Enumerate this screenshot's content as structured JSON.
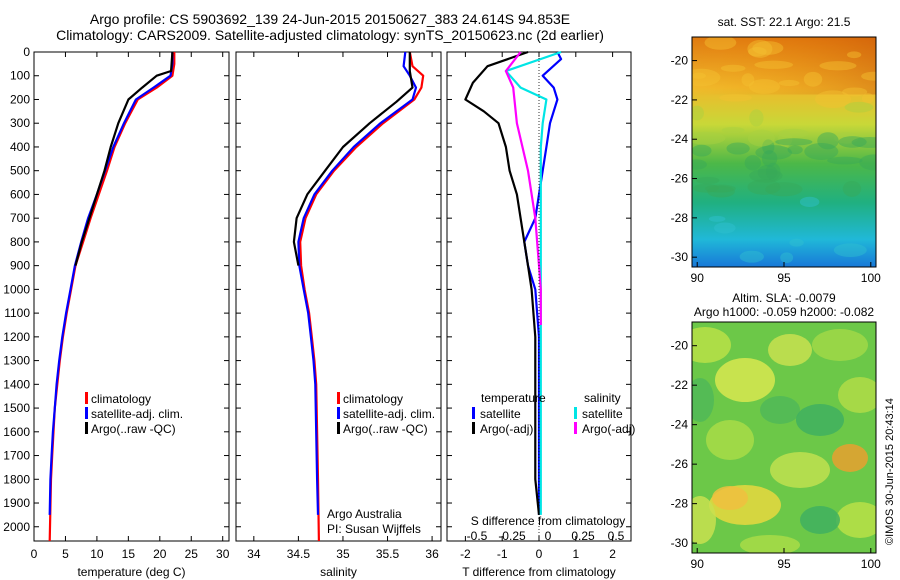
{
  "header": {
    "line1": "Argo profile: CS 5903692_139 24-Jun-2015 20150627_383 24.614S 94.853E",
    "line2": "Climatology: CARS2009. Satellite-adjusted climatology: synTS_20150623.nc (2d earlier)"
  },
  "credit": "©IMOS 30-Jun-2015 20:43:14",
  "colors": {
    "climatology": "#ff0000",
    "satellite": "#0000ff",
    "argo": "#000000",
    "sal_satellite": "#00e5e5",
    "sal_argo": "#ff00ff"
  },
  "chart_data": [
    {
      "id": "temperature",
      "type": "line",
      "xlabel": "temperature (deg C)",
      "ylabel": "",
      "xlim": [
        0,
        31
      ],
      "ylim": [
        0,
        2060
      ],
      "xticks": [
        0,
        5,
        10,
        15,
        20,
        25,
        30
      ],
      "yticks": [
        0,
        100,
        200,
        300,
        400,
        500,
        600,
        700,
        800,
        900,
        1000,
        1100,
        1200,
        1300,
        1400,
        1500,
        1600,
        1700,
        1800,
        1900,
        2000
      ],
      "legend": [
        "climatology",
        "satellite-adj. clim.",
        "Argo(..raw -QC)"
      ],
      "series": [
        {
          "name": "climatology",
          "x": [
            22.3,
            22.3,
            22.0,
            19.5,
            16.5,
            14.5,
            12.8,
            11.6,
            10.3,
            9.0,
            7.8,
            6.6,
            5.9,
            5.2,
            4.6,
            4.1,
            3.7,
            3.3,
            3.1,
            2.9,
            2.7,
            2.5
          ],
          "y": [
            0,
            50,
            100,
            150,
            200,
            300,
            400,
            500,
            600,
            700,
            800,
            900,
            1000,
            1100,
            1200,
            1300,
            1400,
            1500,
            1600,
            1700,
            1800,
            2060
          ]
        },
        {
          "name": "satellite-adj. clim.",
          "x": [
            22.0,
            22.0,
            21.7,
            19.0,
            16.2,
            14.3,
            12.6,
            11.3,
            10.0,
            8.6,
            7.5,
            6.5,
            5.8,
            5.1,
            4.5,
            4.0,
            3.6,
            3.3,
            3.0,
            2.8,
            2.6,
            2.5
          ],
          "y": [
            0,
            50,
            100,
            150,
            200,
            300,
            400,
            500,
            600,
            700,
            800,
            900,
            1000,
            1100,
            1200,
            1300,
            1400,
            1500,
            1600,
            1700,
            1800,
            1950
          ]
        },
        {
          "name": "Argo(..raw -QC)",
          "x": [
            22.0,
            21.8,
            19.5,
            17.2,
            15.0,
            13.4,
            12.2,
            11.2,
            10.0,
            8.8,
            7.6,
            6.6
          ],
          "y": [
            0,
            80,
            100,
            150,
            200,
            300,
            400,
            500,
            600,
            700,
            800,
            900
          ]
        }
      ]
    },
    {
      "id": "salinity",
      "type": "line",
      "xlabel": "salinity",
      "ylabel": "",
      "xlim": [
        33.8,
        36.1
      ],
      "ylim": [
        0,
        2060
      ],
      "xticks": [
        34,
        34.5,
        35,
        35.5,
        36
      ],
      "xticklabels": [
        "34",
        "34.5",
        "35",
        "35.5",
        "36"
      ],
      "legend": [
        "climatology",
        "satellite-adj. clim.",
        "Argo(..raw -QC)"
      ],
      "annotation": [
        "Argo Australia",
        "PI: Susan Wijffels"
      ],
      "series": [
        {
          "name": "climatology",
          "x": [
            35.75,
            35.78,
            35.9,
            35.88,
            35.8,
            35.45,
            35.15,
            34.9,
            34.7,
            34.58,
            34.52,
            34.53,
            34.57,
            34.62,
            34.65,
            34.68,
            34.7,
            34.71,
            34.72,
            34.73
          ],
          "y": [
            0,
            60,
            100,
            150,
            200,
            300,
            400,
            500,
            600,
            700,
            800,
            900,
            1000,
            1100,
            1200,
            1300,
            1400,
            1600,
            1800,
            2060
          ]
        },
        {
          "name": "satellite-adj. clim.",
          "x": [
            35.7,
            35.68,
            35.75,
            35.82,
            35.78,
            35.42,
            35.12,
            34.88,
            34.68,
            34.56,
            34.5,
            34.51,
            34.56,
            34.61,
            34.64,
            34.67,
            34.69,
            34.7,
            34.71,
            34.72
          ],
          "y": [
            0,
            60,
            100,
            150,
            200,
            300,
            400,
            500,
            600,
            700,
            800,
            900,
            1000,
            1100,
            1200,
            1300,
            1400,
            1600,
            1800,
            1950
          ]
        },
        {
          "name": "Argo(..raw -QC)",
          "x": [
            35.75,
            35.75,
            35.78,
            35.6,
            35.3,
            35.0,
            34.8,
            34.6,
            34.48,
            34.45,
            34.5
          ],
          "y": [
            0,
            80,
            150,
            210,
            300,
            400,
            500,
            600,
            700,
            800,
            900
          ]
        }
      ]
    },
    {
      "id": "difference",
      "type": "line",
      "xlabel": "T difference from climatology",
      "top_label": "S difference from climatology",
      "xlim": [
        -2.5,
        2.5
      ],
      "ylim": [
        0,
        2060
      ],
      "xticks": [
        -2,
        -1,
        0,
        1,
        2
      ],
      "s_ticklabels": [
        "-0.5",
        "-0.25",
        "0",
        "0.25",
        "0.5"
      ],
      "legend_titles": [
        "temperature",
        "salinity"
      ],
      "legend": [
        "satellite",
        "Argo(-adj)",
        "satellite",
        "Argo(-adj)"
      ],
      "series": [
        {
          "name": "temperature satellite",
          "x": [
            0.5,
            0.6,
            0.1,
            0.4,
            0.5,
            0.3,
            0.2,
            0.1,
            0.0,
            -0.1,
            -0.4,
            -0.3,
            -0.1,
            0.0,
            0.0,
            0.0,
            0.0
          ],
          "y": [
            0,
            30,
            100,
            150,
            200,
            300,
            400,
            500,
            600,
            700,
            800,
            900,
            1000,
            1200,
            1500,
            1800,
            1950
          ]
        },
        {
          "name": "temperature Argo(-adj)",
          "x": [
            -0.3,
            -1.4,
            -1.8,
            -2.0,
            -1.5,
            -1.1,
            -0.9,
            -0.8,
            -0.6,
            -0.5,
            -0.4,
            -0.3,
            -0.2,
            -0.1,
            -0.1,
            -0.1,
            0.0
          ],
          "y": [
            0,
            60,
            130,
            200,
            250,
            300,
            400,
            500,
            600,
            700,
            800,
            900,
            1000,
            1200,
            1500,
            1800,
            1950
          ]
        },
        {
          "name": "salinity satellite",
          "x": [
            0.6,
            -0.9,
            -0.5,
            0.2,
            0.1,
            0.05,
            0.05,
            0.05,
            0.05,
            0.05,
            0.05
          ],
          "y": [
            0,
            80,
            150,
            200,
            300,
            400,
            600,
            800,
            1000,
            1500,
            1950
          ]
        },
        {
          "name": "salinity Argo(-adj)",
          "x": [
            -0.5,
            -0.9,
            -0.7,
            -0.6,
            -0.3,
            -0.1,
            0.0,
            0.05,
            0.05
          ],
          "y": [
            0,
            80,
            150,
            300,
            500,
            700,
            900,
            1000,
            1150
          ]
        }
      ]
    },
    {
      "id": "sst-map",
      "type": "heatmap",
      "title": "sat. SST: 22.1  Argo: 21.5",
      "xlim": [
        89.7,
        100.3
      ],
      "ylim": [
        -30.5,
        -18.8
      ],
      "xticks": [
        90,
        95,
        100
      ],
      "yticks": [
        -20,
        -22,
        -24,
        -26,
        -28,
        -30
      ]
    },
    {
      "id": "sla-map",
      "type": "heatmap",
      "title": "Altim. SLA: -0.0079",
      "subtitle": "Argo h1000: -0.059 h2000: -0.082",
      "xlim": [
        89.7,
        100.3
      ],
      "ylim": [
        -30.5,
        -18.8
      ],
      "xticks": [
        90,
        95,
        100
      ],
      "yticks": [
        -20,
        -22,
        -24,
        -26,
        -28,
        -30
      ]
    }
  ]
}
